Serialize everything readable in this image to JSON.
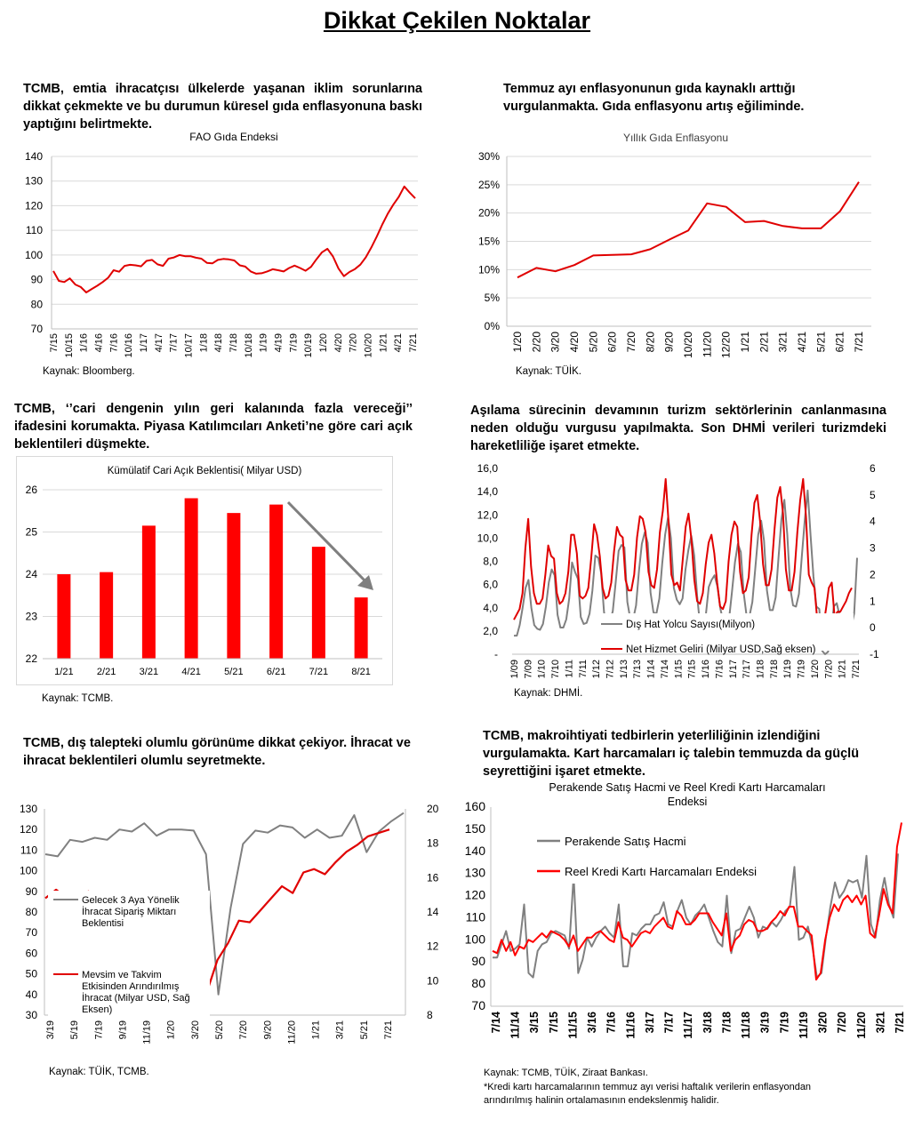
{
  "page_title": "Dikkat Çekilen Noktalar",
  "sections": [
    {
      "text": "TCMB, emtia ihracatçısı ülkelerde yaşanan iklim sorunlarına dikkat çekmekte ve bu durumun küresel gıda enflasyonuna baskı yaptığını belirtmekte.",
      "source": "Kaynak: Bloomberg."
    },
    {
      "text": "Temmuz ayı enflasyonunun gıda kaynaklı arttığı vurgulanmakta. Gıda enflasyonu artış eğiliminde.",
      "source": "Kaynak: TÜİK."
    },
    {
      "text": "TCMB, ‘’cari dengenin yılın geri kalanında fazla vereceği’’ ifadesini korumakta.  Piyasa Katılımcıları Anketi’ne göre cari açık beklentileri düşmekte.",
      "source": "Kaynak: TCMB."
    },
    {
      "text": "Aşılama sürecinin devamının turizm sektörlerinin canlanmasına neden olduğu vurgusu yapılmakta. Son DHMİ verileri turizmdeki hareketliliğe işaret etmekte.",
      "source": "Kaynak: DHMİ."
    },
    {
      "text": "TCMB, dış talepteki olumlu görünüme dikkat çekiyor. İhracat ve ihracat beklentileri olumlu seyretmekte.",
      "source": "Kaynak: TÜİK, TCMB."
    },
    {
      "text": "TCMB,  makroihtiyati tedbirlerin yeterliliğinin izlendiğini vurgulamakta. Kart harcamaları iç talebin temmuzda da güçlü seyrettiğini işaret etmekte.",
      "source": "Kaynak: TCMB, TÜİK, Ziraat Bankası.",
      "footnote_1": "*Kredi kartı harcamalarının temmuz ayı verisi haftalık verilerin enflasyondan",
      "footnote_2": "arındırılmış halinin ortalamasının endekslenmiş halidir."
    }
  ],
  "chart_data": [
    {
      "type": "line",
      "title": "FAO Gıda Endeksi",
      "ylim": [
        70,
        140
      ],
      "yticks": [
        "70",
        "80",
        "90",
        "100",
        "110",
        "120",
        "130",
        "140"
      ],
      "xticks": [
        "7/15",
        "10/15",
        "1/16",
        "4/16",
        "7/16",
        "10/16",
        "1/17",
        "4/17",
        "7/17",
        "10/17",
        "1/18",
        "4/18",
        "7/18",
        "10/18",
        "1/19",
        "4/19",
        "7/19",
        "10/19",
        "1/20",
        "4/20",
        "7/20",
        "10/20",
        "1/21",
        "4/21",
        "7/21"
      ],
      "grid": true,
      "colors": {
        "series": "#e00000"
      },
      "series": [
        {
          "values": [
            93.5,
            89.5,
            89,
            90.5,
            88,
            87,
            84.8,
            86.2,
            87.5,
            89,
            90.8,
            93.8,
            93.2,
            95.6,
            96,
            95.8,
            95.4,
            97.6,
            98,
            96.2,
            95.6,
            98.5,
            99,
            100,
            99.5,
            99.5,
            98.9,
            98.5,
            96.8,
            96.6,
            98,
            98.4,
            98.2,
            97.8,
            95.8,
            95.3,
            93.3,
            92.4,
            92.6,
            93.3,
            94.2,
            93.8,
            93.3,
            94.7,
            95.7,
            94.7,
            93.6,
            95.2,
            98.3,
            101.1,
            102.5,
            99.4,
            94.5,
            91.4,
            93.1,
            94.3,
            96.1,
            99.1,
            103.1,
            107.5,
            112.4,
            116.8,
            120.4,
            123.6,
            127.8,
            125.3,
            123
          ]
        }
      ]
    },
    {
      "type": "line",
      "title": "Yıllık Gıda Enflasyonu",
      "ylim": [
        0,
        30
      ],
      "yticks": [
        "0%",
        "5%",
        "10%",
        "15%",
        "20%",
        "25%",
        "30%"
      ],
      "x": [
        "1/20",
        "2/20",
        "3/20",
        "4/20",
        "5/20",
        "6/20",
        "7/20",
        "8/20",
        "9/20",
        "10/20",
        "11/20",
        "12/20",
        "1/21",
        "2/21",
        "3/21",
        "4/21",
        "5/21",
        "6/21",
        "7/21"
      ],
      "grid": true,
      "colors": {
        "series": "#e00000"
      },
      "series": [
        {
          "values": [
            8.6,
            10.3,
            9.7,
            10.8,
            12.5,
            12.6,
            12.7,
            13.6,
            15.3,
            16.9,
            21.7,
            21.1,
            18.4,
            18.6,
            17.7,
            17.3,
            17.3,
            20.3,
            25.5
          ]
        }
      ]
    },
    {
      "type": "bar",
      "title": "Kümülatif Cari Açık Beklentisi( Milyar USD)",
      "categories": [
        "1/21",
        "2/21",
        "3/21",
        "4/21",
        "5/21",
        "6/21",
        "7/21",
        "8/21"
      ],
      "values": [
        24.0,
        24.05,
        25.15,
        25.8,
        25.45,
        25.65,
        24.65,
        23.45
      ],
      "ylim": [
        22,
        26
      ],
      "yticks": [
        "22",
        "23",
        "24",
        "25",
        "26"
      ],
      "grid": true,
      "colors": {
        "bar": "#ff0000",
        "arrow": "#7f7f7f"
      }
    },
    {
      "type": "line",
      "ylim": [
        0,
        16
      ],
      "y2lim": [
        -1,
        6
      ],
      "yticks": [
        "-",
        "2,0",
        "4,0",
        "6,0",
        "8,0",
        "10,0",
        "12,0",
        "14,0",
        "16,0"
      ],
      "y2ticks": [
        "-1",
        "0",
        "1",
        "2",
        "3",
        "4",
        "5",
        "6"
      ],
      "xticks": [
        "1/09",
        "7/09",
        "1/10",
        "7/10",
        "1/11",
        "7/11",
        "1/12",
        "7/12",
        "1/13",
        "7/13",
        "1/14",
        "7/14",
        "1/15",
        "7/15",
        "1/16",
        "7/16",
        "1/17",
        "7/17",
        "1/18",
        "7/18",
        "1/19",
        "7/19",
        "1/20",
        "7/20",
        "1/21",
        "7/21"
      ],
      "legend": "bottom-center",
      "colors": {
        "gray": "#808080",
        "red": "#e00000"
      },
      "series": [
        {
          "name": "Dış Hat Yolcu Sayısı(Milyon)",
          "axis": "left",
          "values": [
            1.6,
            1.6,
            2.5,
            4,
            5.7,
            6.4,
            4,
            2.5,
            2.2,
            2.1,
            2.6,
            4.1,
            6.2,
            7.3,
            6.8,
            3.4,
            2.3,
            2.3,
            3,
            4.8,
            7.9,
            7.1,
            6.5,
            3.2,
            2.6,
            2.7,
            3.5,
            5.5,
            8.5,
            8.3,
            7,
            3.6,
            2.7,
            2.8,
            3.7,
            6.2,
            8.9,
            9.4,
            9.2,
            4.5,
            3.1,
            3,
            4.2,
            7.2,
            9.5,
            10.5,
            9.6,
            5.3,
            3.6,
            3.5,
            4.8,
            7.8,
            10.3,
            11.8,
            10,
            5.7,
            4.7,
            4.3,
            4.8,
            7.3,
            9,
            10.2,
            8.5,
            5,
            2.5,
            2.2,
            3.4,
            5.8,
            6.4,
            6.8,
            5.8,
            3.9,
            2.8,
            2.6,
            3.1,
            5.4,
            7.9,
            9.5,
            8.8,
            5.3,
            3.3,
            3.3,
            4.5,
            7.4,
            10.3,
            11.5,
            9.8,
            5.5,
            3.8,
            3.8,
            4.9,
            8.4,
            11.6,
            13.3,
            10.3,
            5.7,
            4.2,
            4.1,
            5.2,
            8.4,
            11.5,
            14.1,
            10.2,
            6.7,
            4.1,
            3.9,
            0.3,
            0,
            0.2,
            1.6,
            4.1,
            4.4,
            3.3,
            2.1,
            1.5,
            1.3,
            2.4,
            3.5,
            8.3
          ]
        },
        {
          "name": "Net Hizmet Geliri (Milyar USD,Sağ eksen)",
          "axis": "right",
          "values": [
            0.3,
            0.5,
            0.7,
            1.3,
            3,
            4.1,
            2.3,
            1.3,
            0.9,
            0.9,
            1.1,
            2,
            3.1,
            2.7,
            2.6,
            1.3,
            0.9,
            1,
            1.3,
            2.1,
            3.5,
            3.5,
            2.8,
            1.2,
            1.1,
            1.2,
            1.5,
            2.6,
            3.9,
            3.5,
            2.7,
            1.5,
            1.1,
            1.2,
            1.7,
            2.9,
            3.8,
            3.5,
            3.4,
            1.8,
            1.4,
            1.4,
            2,
            3.4,
            4.2,
            4.1,
            3.6,
            2.1,
            1.6,
            1.5,
            2.2,
            3.6,
            4.4,
            5.6,
            4,
            2,
            1.6,
            1.7,
            1.4,
            2.6,
            3.8,
            4.3,
            3.3,
            1.8,
            1,
            0.9,
            1.3,
            2.4,
            3.2,
            3.5,
            2.8,
            1.7,
            0.8,
            0.7,
            1,
            2.5,
            3.5,
            4,
            3.8,
            2.1,
            1.3,
            1.4,
            1.9,
            3.5,
            4.7,
            5,
            4,
            2.4,
            1.6,
            1.6,
            2.2,
            3.7,
            4.9,
            5.3,
            4.3,
            2.2,
            1.4,
            1.4,
            2.1,
            3.6,
            4.8,
            5.6,
            4.2,
            2,
            1.7,
            1.5,
            0.2,
            -0.1,
            0,
            0.7,
            1.5,
            1.7,
            0.4,
            0.6,
            0.6,
            0.8,
            1,
            1.3,
            1.5
          ]
        }
      ]
    },
    {
      "type": "line",
      "ylim": [
        30,
        130
      ],
      "y2lim": [
        8,
        20
      ],
      "yticks": [
        "30",
        "40",
        "50",
        "60",
        "70",
        "80",
        "90",
        "100",
        "110",
        "120",
        "130"
      ],
      "y2ticks": [
        "8",
        "10",
        "12",
        "14",
        "16",
        "18",
        "20"
      ],
      "xticks": [
        "3/19",
        "5/19",
        "7/19",
        "9/19",
        "11/19",
        "1/20",
        "3/20",
        "5/20",
        "7/20",
        "9/20",
        "11/20",
        "1/21",
        "3/21",
        "5/21",
        "7/21"
      ],
      "legend": "left",
      "colors": {
        "gray": "#808080",
        "red": "#e00000"
      },
      "series": [
        {
          "name": "Gelecek 3 Aya Yönelik İhracat Sipariş Miktarı Beklentisi",
          "axis": "left",
          "values": [
            108,
            107,
            115,
            114,
            116,
            115,
            120,
            119,
            123,
            117,
            120,
            120,
            119.5,
            108,
            40,
            82,
            113,
            119.5,
            118.5,
            122,
            121,
            116,
            120,
            116,
            117,
            127,
            109,
            119,
            124,
            128
          ]
        },
        {
          "name": "Mevsim ve Takvim Etkisinden Arındırılmış İhracat (Milyar USD, Sağ Eksen)",
          "axis": "right",
          "values": [
            14.8,
            15.3,
            14.8,
            14.4,
            15.2,
            13.5,
            14.3,
            14.6,
            14.5,
            14.5,
            14.8,
            14.6,
            15,
            14.8,
            12.7,
            9.3,
            11.2,
            12.2,
            13.5,
            13.4,
            14.1,
            14.8,
            15.5,
            15.1,
            16.3,
            16.5,
            16.2,
            16.9,
            17.5,
            17.9,
            18.4,
            18.6,
            18.8
          ]
        }
      ]
    },
    {
      "type": "line",
      "title": "Perakende Satış Hacmi ve Reel Kredi Kartı Harcamaları Endeksi",
      "ylim": [
        70,
        160
      ],
      "yticks": [
        "70",
        "80",
        "90",
        "100",
        "110",
        "120",
        "130",
        "140",
        "150",
        "160"
      ],
      "xticks": [
        "7/14",
        "11/14",
        "3/15",
        "7/15",
        "11/15",
        "3/16",
        "7/16",
        "11/16",
        "3/17",
        "7/17",
        "11/17",
        "3/18",
        "7/18",
        "11/18",
        "3/19",
        "7/19",
        "11/19",
        "3/20",
        "7/20",
        "11/20",
        "3/21",
        "7/21"
      ],
      "legend": "top-left",
      "colors": {
        "gray": "#808080",
        "red": "#ff0000"
      },
      "series": [
        {
          "name": "Perakende Satış Hacmi",
          "values": [
            92,
            92,
            98,
            104,
            95,
            96,
            98,
            116,
            85,
            83,
            95,
            98,
            99,
            103,
            104,
            103,
            102,
            96,
            129,
            85,
            91,
            101,
            97,
            101,
            104,
            106,
            103,
            101,
            116,
            88,
            88,
            103,
            102,
            105,
            107,
            107,
            111,
            112,
            117,
            107,
            106,
            113,
            118,
            110,
            107,
            111,
            113,
            116,
            110,
            104,
            99,
            97,
            120,
            94,
            104,
            105,
            110,
            115,
            110,
            101,
            106,
            105,
            108,
            106,
            109,
            113,
            115,
            133,
            100,
            101,
            106,
            97,
            83,
            85,
            101,
            115,
            126,
            119,
            122,
            127,
            126,
            127,
            119,
            138,
            107,
            101,
            118,
            128,
            116,
            110,
            139
          ]
        },
        {
          "name": "Reel Kredi Kartı Harcamaları Endeksi",
          "values": [
            95,
            94,
            100,
            95,
            99,
            93,
            97,
            96,
            100,
            99,
            101,
            103,
            101,
            104,
            103,
            102,
            100,
            97,
            102,
            95,
            98,
            101,
            101,
            103,
            104,
            102,
            100,
            99,
            108,
            101,
            100,
            97,
            100,
            103,
            104,
            103,
            106,
            108,
            110,
            106,
            105,
            113,
            111,
            107,
            107,
            109,
            112,
            112,
            112,
            108,
            105,
            102,
            112,
            95,
            100,
            102,
            107,
            109,
            108,
            104,
            104,
            105,
            108,
            110,
            113,
            111,
            115,
            115,
            106,
            106,
            104,
            102,
            82,
            85,
            100,
            110,
            116,
            113,
            118,
            120,
            117,
            120,
            116,
            120,
            103,
            101,
            111,
            123,
            116,
            112,
            142,
            153
          ]
        }
      ]
    }
  ]
}
